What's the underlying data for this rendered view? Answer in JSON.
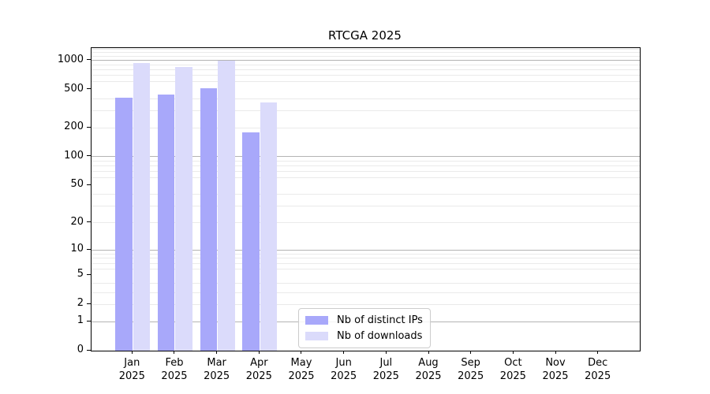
{
  "chart": {
    "title": "RTCGA 2025"
  },
  "chart_data": {
    "type": "bar",
    "title": "RTCGA 2025",
    "categories": [
      "Jan",
      "Feb",
      "Mar",
      "Apr",
      "May",
      "Jun",
      "Jul",
      "Aug",
      "Sep",
      "Oct",
      "Nov",
      "Dec"
    ],
    "category_year": "2025",
    "series": [
      {
        "name": "Nb of distinct IPs",
        "color": "#a8a8fa",
        "values": [
          410,
          440,
          510,
          180,
          null,
          null,
          null,
          null,
          null,
          null,
          null,
          null
        ]
      },
      {
        "name": "Nb of downloads",
        "color": "#dbdbfb",
        "values": [
          930,
          860,
          990,
          365,
          null,
          null,
          null,
          null,
          null,
          null,
          null,
          null
        ]
      }
    ],
    "yscale": "log1p",
    "yticks": [
      0,
      1,
      2,
      5,
      10,
      20,
      50,
      100,
      200,
      500,
      1000
    ],
    "minor_yticks": [
      2,
      3,
      4,
      6,
      7,
      8,
      9,
      20,
      30,
      40,
      60,
      70,
      80,
      90,
      200,
      300,
      400,
      600,
      700,
      800,
      900,
      1100,
      1200,
      1300
    ],
    "major_grid_yticks": [
      1,
      10,
      100,
      1000
    ],
    "ylim": [
      0,
      1340
    ],
    "xlabel": "",
    "ylabel": "",
    "grid": "horizontal",
    "legend_position": "lower center"
  }
}
